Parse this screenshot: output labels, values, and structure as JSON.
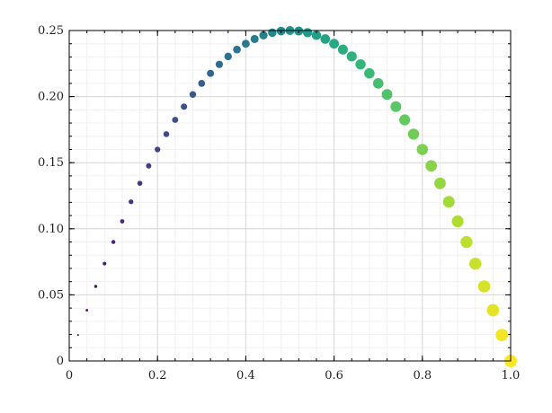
{
  "chart_data": {
    "type": "scatter",
    "title": "",
    "xlabel": "",
    "ylabel": "",
    "xlim": [
      0,
      1
    ],
    "ylim": [
      0,
      0.25
    ],
    "grid": true,
    "minor_grid": true,
    "colormap": "viridis",
    "marker_size_encodes": "x",
    "marker_color_encodes": "x",
    "x_ticks": [
      0,
      0.2,
      0.4,
      0.6,
      0.8,
      1.0
    ],
    "x_tick_labels": [
      "0",
      "0.2",
      "0.4",
      "0.6",
      "0.8",
      "1.0"
    ],
    "y_ticks": [
      0,
      0.05,
      0.1,
      0.15,
      0.2,
      0.25
    ],
    "y_tick_labels": [
      "0",
      "0.05",
      "0.10",
      "0.15",
      "0.20",
      "0.25"
    ],
    "series": [
      {
        "x": [
          0.0,
          0.02,
          0.04,
          0.06,
          0.08,
          0.1,
          0.12,
          0.14,
          0.16,
          0.18,
          0.2,
          0.22,
          0.24,
          0.26,
          0.28,
          0.3,
          0.32,
          0.34,
          0.36,
          0.38,
          0.4,
          0.42,
          0.44,
          0.46,
          0.48,
          0.5,
          0.52,
          0.54,
          0.56,
          0.58,
          0.6,
          0.62,
          0.64,
          0.66,
          0.68,
          0.7,
          0.72,
          0.74,
          0.76,
          0.78,
          0.8,
          0.82,
          0.84,
          0.86,
          0.88,
          0.9,
          0.92,
          0.94,
          0.96,
          0.98,
          1.0
        ],
        "y": [
          0.0,
          0.0196,
          0.0384,
          0.0564,
          0.0736,
          0.09,
          0.1056,
          0.1204,
          0.1344,
          0.1476,
          0.16,
          0.1716,
          0.1824,
          0.1924,
          0.2016,
          0.21,
          0.2176,
          0.2244,
          0.2304,
          0.2356,
          0.24,
          0.2436,
          0.2464,
          0.2484,
          0.2496,
          0.25,
          0.2496,
          0.2484,
          0.2464,
          0.2436,
          0.24,
          0.2356,
          0.2304,
          0.2244,
          0.2176,
          0.21,
          0.2016,
          0.1924,
          0.1824,
          0.1716,
          0.16,
          0.1476,
          0.1344,
          0.1204,
          0.1056,
          0.09,
          0.0736,
          0.0564,
          0.0384,
          0.0196,
          0.0
        ]
      }
    ]
  }
}
